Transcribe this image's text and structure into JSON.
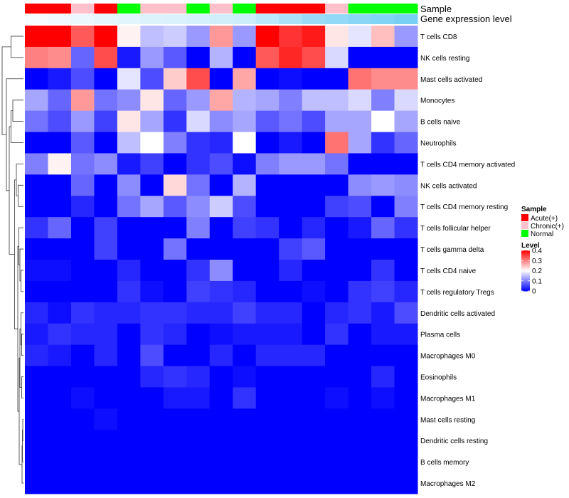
{
  "chart_data": {
    "type": "heatmap",
    "annotation_labels": {
      "sample": "Sample",
      "expression": "Gene expression level"
    },
    "rows": [
      "T cells CD8",
      "NK cells resting",
      "Mast cells activated",
      "Monocytes",
      "B cells naive",
      "Neutrophils",
      "T cells CD4 memory activated",
      "NK cells activated",
      "T cells CD4 memory resting",
      "T cells follicular helper",
      "T cells gamma delta",
      "T cells CD4 naive",
      "T cells regulatory  Tregs",
      "Dendritic cells activated",
      "Plasma cells",
      "Macrophages M0",
      "Eosinophils",
      "Macrophages M1",
      "Mast cells resting",
      "Dendritic cells resting",
      "B cells memory",
      "Macrophages M2"
    ],
    "sample_groups": [
      "Acute(+)",
      "Acute(+)",
      "Chronic(+)",
      "Acute(+)",
      "Normal",
      "Chronic(+)",
      "Chronic(+)",
      "Normal",
      "Chronic(+)",
      "Normal",
      "Acute(+)",
      "Acute(+)",
      "Acute(+)",
      "Chronic(+)",
      "Normal",
      "Normal",
      "Normal"
    ],
    "expression_level": [
      0.05,
      0.08,
      0.12,
      0.15,
      0.18,
      0.2,
      0.22,
      0.25,
      0.28,
      0.3,
      0.4,
      0.5,
      0.6,
      0.65,
      0.7,
      0.75,
      0.8
    ],
    "values": [
      [
        0.4,
        0.4,
        0.33,
        0.4,
        0.21,
        0.15,
        0.16,
        0.12,
        0.28,
        0.12,
        0.4,
        0.36,
        0.38,
        0.22,
        0.18,
        0.25,
        0.12
      ],
      [
        0.3,
        0.29,
        0.08,
        0.34,
        0.02,
        0.12,
        0.07,
        0.0,
        0.14,
        0.0,
        0.33,
        0.37,
        0.34,
        0.17,
        0.0,
        0.0,
        0.0
      ],
      [
        0.0,
        0.02,
        0.06,
        0.0,
        0.18,
        0.06,
        0.24,
        0.34,
        0.0,
        0.27,
        0.0,
        0.01,
        0.0,
        0.0,
        0.31,
        0.29,
        0.29
      ],
      [
        0.13,
        0.08,
        0.28,
        0.09,
        0.11,
        0.22,
        0.08,
        0.12,
        0.27,
        0.14,
        0.13,
        0.1,
        0.15,
        0.15,
        0.17,
        0.1,
        0.17
      ],
      [
        0.09,
        0.06,
        0.12,
        0.05,
        0.22,
        0.13,
        0.04,
        0.17,
        0.11,
        0.13,
        0.07,
        0.09,
        0.06,
        0.13,
        0.13,
        0.2,
        0.13
      ],
      [
        0.0,
        0.0,
        0.07,
        0.0,
        0.15,
        0.2,
        0.1,
        0.04,
        0.03,
        0.2,
        0.0,
        0.02,
        0.0,
        0.31,
        0.13,
        0.04,
        0.08
      ],
      [
        0.1,
        0.21,
        0.09,
        0.11,
        0.02,
        0.05,
        0.0,
        0.04,
        0.06,
        0.01,
        0.1,
        0.12,
        0.12,
        0.09,
        0.0,
        0.0,
        0.0
      ],
      [
        0.0,
        0.0,
        0.08,
        0.0,
        0.11,
        0.0,
        0.23,
        0.09,
        0.0,
        0.14,
        0.0,
        0.0,
        0.0,
        0.0,
        0.11,
        0.12,
        0.11
      ],
      [
        0.0,
        0.0,
        0.03,
        0.0,
        0.09,
        0.13,
        0.07,
        0.11,
        0.16,
        0.06,
        0.0,
        0.0,
        0.0,
        0.05,
        0.06,
        0.0,
        0.1
      ],
      [
        0.04,
        0.08,
        0.0,
        0.05,
        0.0,
        0.0,
        0.0,
        0.1,
        0.0,
        0.05,
        0.04,
        0.0,
        0.03,
        0.0,
        0.02,
        0.08,
        0.04
      ],
      [
        0.0,
        0.0,
        0.0,
        0.05,
        0.0,
        0.0,
        0.09,
        0.0,
        0.0,
        0.0,
        0.0,
        0.05,
        0.07,
        0.0,
        0.0,
        0.0,
        0.0
      ],
      [
        0.01,
        0.01,
        0.0,
        0.0,
        0.03,
        0.0,
        0.0,
        0.04,
        0.11,
        0.0,
        0.0,
        0.03,
        0.0,
        0.0,
        0.0,
        0.04,
        0.0
      ],
      [
        0.0,
        0.0,
        0.0,
        0.0,
        0.04,
        0.01,
        0.0,
        0.05,
        0.04,
        0.03,
        0.0,
        0.0,
        0.01,
        0.0,
        0.04,
        0.05,
        0.03
      ],
      [
        0.03,
        0.01,
        0.04,
        0.03,
        0.03,
        0.04,
        0.04,
        0.03,
        0.03,
        0.05,
        0.03,
        0.03,
        0.0,
        0.03,
        0.04,
        0.02,
        0.06
      ],
      [
        0.02,
        0.04,
        0.03,
        0.03,
        0.0,
        0.04,
        0.03,
        0.0,
        0.01,
        0.02,
        0.02,
        0.02,
        0.0,
        0.04,
        0.0,
        0.02,
        0.02
      ],
      [
        0.03,
        0.02,
        0.0,
        0.03,
        0.0,
        0.06,
        0.0,
        0.0,
        0.03,
        0.0,
        0.03,
        0.03,
        0.03,
        0.0,
        0.0,
        0.0,
        0.0
      ],
      [
        0.0,
        0.0,
        0.0,
        0.0,
        0.0,
        0.03,
        0.04,
        0.03,
        0.0,
        0.01,
        0.0,
        0.0,
        0.0,
        0.0,
        0.0,
        0.03,
        0.0
      ],
      [
        0.0,
        0.0,
        0.01,
        0.0,
        0.0,
        0.0,
        0.02,
        0.02,
        0.0,
        0.04,
        0.0,
        0.0,
        0.0,
        0.01,
        0.0,
        0.01,
        0.0
      ],
      [
        0.0,
        0.0,
        0.0,
        0.01,
        0.0,
        0.0,
        0.0,
        0.0,
        0.0,
        0.0,
        0.0,
        0.0,
        0.0,
        0.0,
        0.0,
        0.0,
        0.0
      ],
      [
        0.0,
        0.0,
        0.0,
        0.0,
        0.0,
        0.0,
        0.0,
        0.0,
        0.0,
        0.0,
        0.0,
        0.0,
        0.0,
        0.0,
        0.0,
        0.0,
        0.0
      ],
      [
        0.0,
        0.0,
        0.0,
        0.0,
        0.0,
        0.0,
        0.0,
        0.0,
        0.0,
        0.0,
        0.0,
        0.0,
        0.0,
        0.0,
        0.0,
        0.0,
        0.0
      ],
      [
        0.0,
        0.0,
        0.0,
        0.0,
        0.0,
        0.0,
        0.0,
        0.0,
        0.0,
        0.0,
        0.0,
        0.0,
        0.0,
        0.0,
        0.0,
        0.0,
        0.0
      ]
    ],
    "value_range": [
      0,
      0.4
    ],
    "legend": {
      "sample_title": "Sample",
      "sample_entries": [
        {
          "label": "Acute(+)",
          "color": "#ff0000"
        },
        {
          "label": "Chronic(+)",
          "color": "#ffc0cb"
        },
        {
          "label": "Normal",
          "color": "#00ff00"
        }
      ],
      "level_title": "Level",
      "level_ticks": [
        {
          "value": 0.4,
          "label": "0.4"
        },
        {
          "value": 0.3,
          "label": "0.3"
        },
        {
          "value": 0.2,
          "label": "0.2"
        },
        {
          "value": 0.1,
          "label": "0.1"
        },
        {
          "value": 0,
          "label": "0"
        }
      ]
    },
    "colorscale": {
      "low": "#0000ff",
      "mid": "#ffffff",
      "high": "#ff0000",
      "mid_value": 0.2
    },
    "expression_colorscale": {
      "low": "#ffffff",
      "high": "#56c5f2"
    },
    "dendrogram_merges": [
      [
        18,
        19,
        0.02
      ],
      [
        -1,
        20,
        0.03
      ],
      [
        -2,
        21,
        0.04
      ],
      [
        16,
        17,
        0.05
      ],
      [
        14,
        15,
        0.05
      ],
      [
        13,
        -5,
        0.07
      ],
      [
        -6,
        -4,
        0.1
      ],
      [
        -3,
        -7,
        0.12
      ],
      [
        11,
        12,
        0.07
      ],
      [
        10,
        -9,
        0.1
      ],
      [
        9,
        -10,
        0.13
      ],
      [
        -11,
        -8,
        0.16
      ],
      [
        7,
        8,
        0.15
      ],
      [
        6,
        -13,
        0.2
      ],
      [
        -12,
        -14,
        0.25
      ],
      [
        3,
        4,
        0.3
      ],
      [
        5,
        -16,
        0.35
      ],
      [
        -17,
        -15,
        0.4
      ],
      [
        2,
        -18,
        0.48
      ],
      [
        0,
        1,
        0.35
      ],
      [
        -20,
        -19,
        0.6
      ]
    ]
  }
}
